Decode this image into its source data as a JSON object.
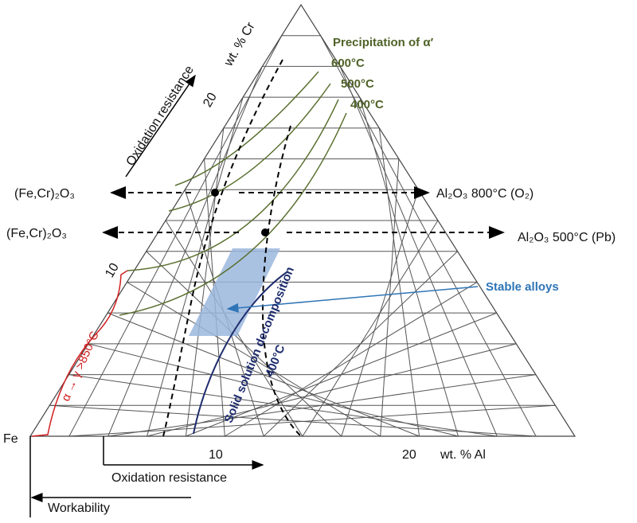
{
  "axes": {
    "corner": "Fe",
    "cr_label": "wt. % Cr",
    "cr_ticks": [
      "20",
      "10"
    ],
    "al_label": "wt. % Al",
    "al_ticks": [
      "10",
      "20"
    ]
  },
  "arrows": {
    "oxidation_cr": "Oxidation resistance",
    "oxidation_al": "Oxidation resistance",
    "workability": "Workability"
  },
  "precipitation": {
    "title": "Precipitation of α′",
    "temps": [
      "600°C",
      "500°C",
      "400°C"
    ]
  },
  "oxides": [
    {
      "left": "(Fe,Cr)₂O₃",
      "right": "Al₂O₃ 800°C (O₂)"
    },
    {
      "left": "(Fe,Cr)₂O₃",
      "right": "Al₂O₃ 500°C (Pb)"
    }
  ],
  "annotations": {
    "stable": "Stable alloys",
    "decomposition": "Solid solution decomposition",
    "decomposition_temp": "400°C",
    "transformation": "α → γ >850°C"
  }
}
